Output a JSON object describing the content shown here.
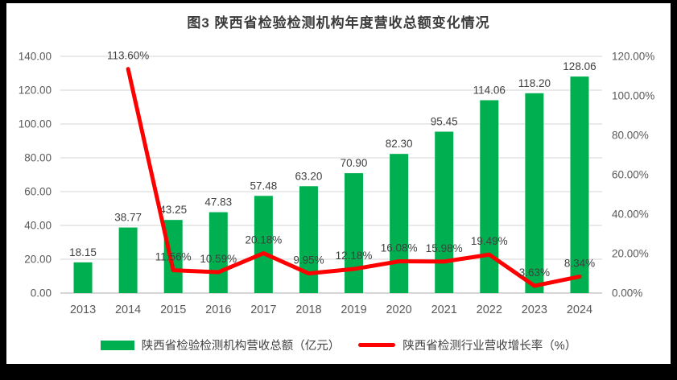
{
  "window": {
    "background_color": "#000000",
    "inner_background": "#ffffff"
  },
  "chart_data": {
    "type": "bar+line",
    "title": "图3  陕西省检验检测机构年度营收总额变化情况",
    "categories": [
      "2013",
      "2014",
      "2015",
      "2016",
      "2017",
      "2018",
      "2019",
      "2020",
      "2021",
      "2022",
      "2023",
      "2024"
    ],
    "series": [
      {
        "name": "陕西省检验检测机构营收总额（亿元）",
        "chart_type": "bar",
        "axis": "left",
        "color": "#00B050",
        "values": [
          18.15,
          38.77,
          43.25,
          47.83,
          57.48,
          63.2,
          70.9,
          82.3,
          95.45,
          114.06,
          118.2,
          128.06
        ],
        "labels": [
          "18.15",
          "38.77",
          "43.25",
          "47.83",
          "57.48",
          "63.20",
          "70.90",
          "82.30",
          "95.45",
          "114.06",
          "118.20",
          "128.06"
        ]
      },
      {
        "name": "陕西省检测行业营收增长率（%）",
        "chart_type": "line",
        "axis": "right",
        "color": "#FF0000",
        "values": [
          null,
          113.6,
          11.56,
          10.59,
          20.18,
          9.95,
          12.18,
          16.08,
          15.98,
          19.49,
          3.63,
          8.34
        ],
        "labels": [
          null,
          "113.60%",
          "11.56%",
          "10.59%",
          "20.18%",
          "9.95%",
          "12.18%",
          "16.08%",
          "15.98%",
          "19.49%",
          "3.63%",
          "8.34%"
        ]
      }
    ],
    "left_axis": {
      "min": 0,
      "max": 140,
      "step": 20,
      "ticks": [
        "0.00",
        "20.00",
        "40.00",
        "60.00",
        "80.00",
        "100.00",
        "120.00",
        "140.00"
      ]
    },
    "right_axis": {
      "min": 0,
      "max": 120,
      "step": 20,
      "ticks": [
        "0.00%",
        "20.00%",
        "40.00%",
        "60.00%",
        "80.00%",
        "100.00%",
        "120.00%"
      ]
    },
    "grid": true,
    "legend_position": "bottom",
    "colors": {
      "grid_line": "#E3E3E3",
      "axis_line": "#C9C9C9",
      "axis_text": "#595959",
      "data_label_text": "#404040",
      "title_text": "#3b3b3b"
    }
  },
  "legend": {
    "bar_label": "陕西省检验检测机构营收总额（亿元）",
    "line_label": "陕西省检测行业营收增长率（%）"
  }
}
